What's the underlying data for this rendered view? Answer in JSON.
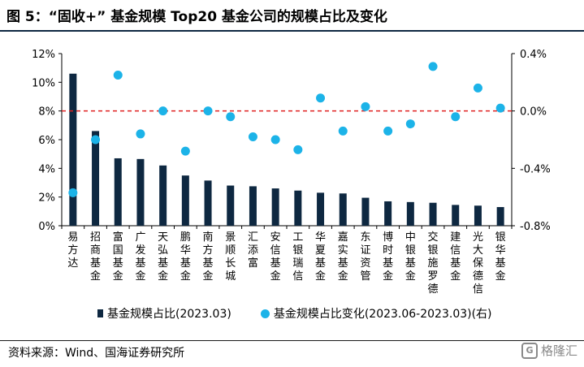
{
  "title": "图 5：“固收+” 基金规模 Top20 基金公司的规模占比及变化",
  "source": "资料来源：Wind、国海证券研究所",
  "watermark": "格隆汇",
  "legend": {
    "bar_label": "基金规模占比(2023.03)",
    "dot_label": "基金规模占比变化(2023.06-2023.03)(右)"
  },
  "colors": {
    "bar": "#0e2841",
    "dot": "#1cb3e8",
    "refline": "#e02020"
  },
  "chart_data": {
    "type": "bar",
    "categories": [
      "易方达",
      "招商基金",
      "富国基金",
      "广发基金",
      "天弘基金",
      "鹏华基金",
      "南方基金",
      "景顺长城",
      "汇添富",
      "安信基金",
      "工银瑞信",
      "华夏基金",
      "嘉实基金",
      "东证资管",
      "博时基金",
      "中银基金",
      "交银施罗德",
      "建信基金",
      "光大保德信",
      "银华基金"
    ],
    "series": [
      {
        "name": "基金规模占比(2023.03)",
        "axis": "left",
        "values": [
          10.6,
          6.6,
          4.7,
          4.65,
          4.2,
          3.5,
          3.15,
          2.8,
          2.75,
          2.6,
          2.45,
          2.3,
          2.25,
          1.95,
          1.7,
          1.65,
          1.6,
          1.45,
          1.4,
          1.3
        ]
      },
      {
        "name": "基金规模占比变化(2023.06-2023.03)(右)",
        "axis": "right",
        "values": [
          -0.57,
          -0.2,
          0.25,
          -0.16,
          0.0,
          -0.28,
          0.0,
          -0.04,
          -0.18,
          -0.2,
          -0.27,
          0.09,
          -0.14,
          0.03,
          -0.14,
          -0.09,
          0.31,
          -0.04,
          0.16,
          0.02
        ]
      }
    ],
    "y_left": {
      "ylim": [
        0,
        12
      ],
      "ticks": [
        "0%",
        "2%",
        "4%",
        "6%",
        "8%",
        "10%",
        "12%"
      ]
    },
    "y_right": {
      "ylim": [
        -0.8,
        0.4
      ],
      "ticks": [
        "-0.8%",
        "-0.4%",
        "0.0%",
        "0.4%"
      ]
    },
    "reference_line": {
      "axis": "right",
      "value": 0.0,
      "style": "dashed"
    },
    "grid": false,
    "legend_position": "bottom"
  }
}
